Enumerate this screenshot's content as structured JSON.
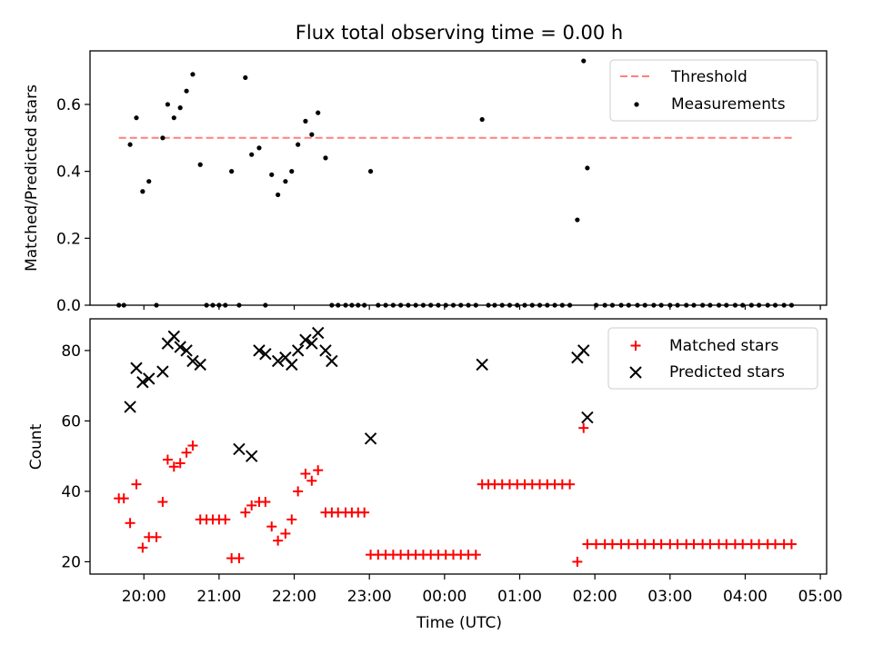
{
  "chart_data": [
    {
      "type": "scatter",
      "title": "Flux total observing time = 0.00 h",
      "xlabel": "",
      "ylabel": "Matched/Predicted stars",
      "xlim": [
        "19:17",
        "05:05"
      ],
      "ylim": [
        0,
        0.76
      ],
      "yticks": [
        0.0,
        0.2,
        0.4,
        0.6
      ],
      "ytick_labels": [
        "0.0",
        "0.2",
        "0.4",
        "0.6"
      ],
      "legend": {
        "position": "top-right",
        "entries": [
          "Threshold",
          "Measurements"
        ]
      },
      "series": [
        {
          "name": "Threshold",
          "kind": "dashed-line",
          "color": "#ff7f7f",
          "x": [
            "19:40",
            "04:38"
          ],
          "y": [
            0.5,
            0.5
          ]
        },
        {
          "name": "Measurements",
          "kind": "points",
          "color": "#000000",
          "x": [
            "19:40",
            "19:44",
            "19:49",
            "19:54",
            "19:59",
            "20:04",
            "20:10",
            "20:15",
            "20:19",
            "20:24",
            "20:29",
            "20:34",
            "20:39",
            "20:45",
            "20:50",
            "20:55",
            "21:00",
            "21:05",
            "21:10",
            "21:16",
            "21:21",
            "21:26",
            "21:32",
            "21:37",
            "21:42",
            "21:47",
            "21:53",
            "21:58",
            "22:03",
            "22:09",
            "22:14",
            "22:19",
            "22:25",
            "22:30",
            "22:35",
            "22:41",
            "22:46",
            "22:51",
            "22:56",
            "23:01",
            "23:07",
            "23:13",
            "23:19",
            "23:25",
            "23:31",
            "23:37",
            "23:43",
            "23:49",
            "23:55",
            "00:01",
            "00:07",
            "00:13",
            "00:19",
            "00:25",
            "00:30",
            "00:35",
            "00:40",
            "00:46",
            "00:52",
            "00:58",
            "01:04",
            "01:10",
            "01:16",
            "01:22",
            "01:28",
            "01:34",
            "01:40",
            "01:46",
            "01:51",
            "01:54",
            "02:01",
            "02:08",
            "02:14",
            "02:21",
            "02:27",
            "02:34",
            "02:40",
            "02:47",
            "02:53",
            "03:00",
            "03:06",
            "03:13",
            "03:19",
            "03:26",
            "03:32",
            "03:39",
            "03:45",
            "03:52",
            "03:58",
            "04:05",
            "04:11",
            "04:18",
            "04:24",
            "04:31",
            "04:37"
          ],
          "y": [
            0.0,
            0.0,
            0.48,
            0.56,
            0.34,
            0.37,
            0.0,
            0.5,
            0.6,
            0.56,
            0.59,
            0.64,
            0.69,
            0.42,
            0.0,
            0.0,
            0.0,
            0.0,
            0.4,
            0.0,
            0.68,
            0.45,
            0.47,
            0.0,
            0.39,
            0.33,
            0.37,
            0.4,
            0.48,
            0.55,
            0.51,
            0.575,
            0.44,
            0.0,
            0.0,
            0.0,
            0.0,
            0.0,
            0.0,
            0.4,
            0.0,
            0.0,
            0.0,
            0.0,
            0.0,
            0.0,
            0.0,
            0.0,
            0.0,
            0.0,
            0.0,
            0.0,
            0.0,
            0.0,
            0.555,
            0.0,
            0.0,
            0.0,
            0.0,
            0.0,
            0.0,
            0.0,
            0.0,
            0.0,
            0.0,
            0.0,
            0.0,
            0.255,
            0.73,
            0.41,
            0.0,
            0.0,
            0.0,
            0.0,
            0.0,
            0.0,
            0.0,
            0.0,
            0.0,
            0.0,
            0.0,
            0.0,
            0.0,
            0.0,
            0.0,
            0.0,
            0.0,
            0.0,
            0.0,
            0.0,
            0.0,
            0.0,
            0.0,
            0.0,
            0.0
          ]
        }
      ]
    },
    {
      "type": "scatter",
      "title": "",
      "xlabel": "Time (UTC)",
      "ylabel": "Count",
      "xlim": [
        "19:17",
        "05:05"
      ],
      "ylim": [
        16.5,
        89
      ],
      "xticks": [
        "20:00",
        "21:00",
        "22:00",
        "23:00",
        "00:00",
        "01:00",
        "02:00",
        "03:00",
        "04:00",
        "05:00"
      ],
      "yticks": [
        20,
        40,
        60,
        80
      ],
      "ytick_labels": [
        "20",
        "40",
        "60",
        "80"
      ],
      "legend": {
        "position": "top-right",
        "entries": [
          "Matched stars",
          "Predicted stars"
        ]
      },
      "series": [
        {
          "name": "Matched stars",
          "marker": "+",
          "color": "#ff0000",
          "x": [
            "19:40",
            "19:44",
            "19:49",
            "19:54",
            "19:59",
            "20:04",
            "20:10",
            "20:15",
            "20:19",
            "20:24",
            "20:29",
            "20:34",
            "20:39",
            "20:45",
            "20:50",
            "20:55",
            "21:00",
            "21:05",
            "21:10",
            "21:16",
            "21:21",
            "21:26",
            "21:32",
            "21:37",
            "21:42",
            "21:47",
            "21:53",
            "21:58",
            "22:03",
            "22:09",
            "22:14",
            "22:19",
            "22:25",
            "22:30",
            "22:35",
            "22:41",
            "22:46",
            "22:51",
            "22:56",
            "23:01",
            "23:07",
            "23:13",
            "23:19",
            "23:25",
            "23:31",
            "23:37",
            "23:43",
            "23:49",
            "23:55",
            "00:01",
            "00:07",
            "00:13",
            "00:19",
            "00:25",
            "00:30",
            "00:35",
            "00:40",
            "00:46",
            "00:52",
            "00:58",
            "01:04",
            "01:10",
            "01:16",
            "01:22",
            "01:28",
            "01:34",
            "01:40",
            "01:46",
            "01:51",
            "01:54",
            "02:01",
            "02:08",
            "02:14",
            "02:21",
            "02:27",
            "02:34",
            "02:40",
            "02:47",
            "02:53",
            "03:00",
            "03:06",
            "03:13",
            "03:19",
            "03:26",
            "03:32",
            "03:39",
            "03:45",
            "03:52",
            "03:58",
            "04:05",
            "04:11",
            "04:18",
            "04:24",
            "04:31",
            "04:37"
          ],
          "y": [
            38,
            38,
            31,
            42,
            24,
            27,
            27,
            37,
            49,
            47,
            48,
            51,
            53,
            32,
            32,
            32,
            32,
            32,
            21,
            21,
            34,
            36,
            37,
            37,
            30,
            26,
            28,
            32,
            40,
            45,
            43,
            46,
            34,
            34,
            34,
            34,
            34,
            34,
            34,
            22,
            22,
            22,
            22,
            22,
            22,
            22,
            22,
            22,
            22,
            22,
            22,
            22,
            22,
            22,
            42,
            42,
            42,
            42,
            42,
            42,
            42,
            42,
            42,
            42,
            42,
            42,
            42,
            20,
            58,
            25,
            25,
            25,
            25,
            25,
            25,
            25,
            25,
            25,
            25,
            25,
            25,
            25,
            25,
            25,
            25,
            25,
            25,
            25,
            25,
            25,
            25,
            25,
            25,
            25,
            25
          ]
        },
        {
          "name": "Predicted stars",
          "marker": "x",
          "color": "#000000",
          "x": [
            "19:49",
            "19:54",
            "19:59",
            "20:04",
            "20:15",
            "20:19",
            "20:24",
            "20:29",
            "20:34",
            "20:39",
            "20:45",
            "21:16",
            "21:26",
            "21:32",
            "21:37",
            "21:47",
            "21:53",
            "21:58",
            "22:03",
            "22:09",
            "22:14",
            "22:19",
            "22:25",
            "22:30",
            "23:01",
            "00:30",
            "01:46",
            "01:51",
            "01:54"
          ],
          "y": [
            64,
            75,
            71,
            72,
            74,
            82,
            84,
            81,
            80,
            77,
            76,
            52,
            50,
            80,
            79,
            77,
            78,
            76,
            80,
            83,
            82,
            85,
            80,
            77,
            55,
            76,
            78,
            80,
            61
          ]
        }
      ]
    }
  ]
}
